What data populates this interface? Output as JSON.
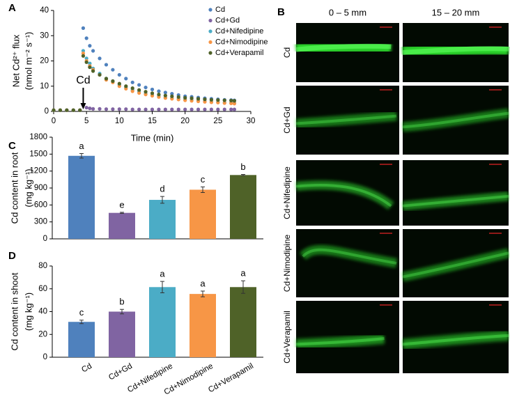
{
  "chart_data": [
    {
      "type": "line",
      "panel": "A",
      "ylabel": [
        "Net Cd²⁺ flux",
        "(nmol m⁻² s⁻¹)"
      ],
      "xlabel": "Time (min)",
      "x": [
        0,
        1,
        2,
        3,
        4,
        4.5,
        5,
        5.5,
        6,
        7,
        8,
        9,
        10,
        11,
        12,
        13,
        14,
        15,
        16,
        17,
        18,
        19,
        20,
        21,
        22,
        23,
        24,
        25,
        26,
        27,
        27.5
      ],
      "series": [
        {
          "name": "Cd",
          "color": "#4f81bd",
          "values": [
            0.5,
            0.5,
            0.5,
            0.5,
            0.5,
            33,
            29,
            26,
            24,
            21,
            18.5,
            16.5,
            14.5,
            13,
            11.5,
            10.5,
            9.5,
            8.7,
            8,
            7.5,
            7,
            6.5,
            6,
            5.8,
            5.5,
            5.2,
            5,
            4.8,
            4.6,
            4.5,
            4.4
          ]
        },
        {
          "name": "Cd+Gd",
          "color": "#8064a2",
          "values": [
            0.5,
            0.5,
            0.5,
            0.5,
            0.5,
            2.5,
            1.5,
            1.2,
            1,
            1,
            0.9,
            0.9,
            0.9,
            0.9,
            0.8,
            0.8,
            0.8,
            0.8,
            0.8,
            0.8,
            0.8,
            0.8,
            0.8,
            0.8,
            0.8,
            0.8,
            0.8,
            0.8,
            0.8,
            0.8,
            0.8
          ]
        },
        {
          "name": "Cd+Nifedipine",
          "color": "#4bacc6",
          "values": [
            0.5,
            0.5,
            0.5,
            0.5,
            0.5,
            24,
            21,
            19,
            17,
            15,
            13,
            12,
            10.5,
            9.5,
            8.5,
            7.8,
            7,
            6.5,
            6,
            5.5,
            5.2,
            5,
            4.7,
            4.5,
            4.3,
            4,
            3.8,
            3.7,
            3.5,
            3.4,
            3.3
          ]
        },
        {
          "name": "Cd+Nimodipine",
          "color": "#f79646",
          "values": [
            0.5,
            0.5,
            0.5,
            0.5,
            0.5,
            23,
            20,
            18,
            16.5,
            14.5,
            12.5,
            11.5,
            10,
            9,
            8,
            7.3,
            6.7,
            6.2,
            5.7,
            5.3,
            5,
            4.7,
            4.4,
            4.2,
            4,
            3.8,
            3.6,
            3.5,
            3.3,
            3.2,
            3.1
          ]
        },
        {
          "name": "Cd+Verapamil",
          "color": "#4f6228",
          "values": [
            0.5,
            0.5,
            0.5,
            0.5,
            0.5,
            22,
            19.5,
            17.5,
            16,
            14.5,
            13,
            12,
            11,
            10,
            9.2,
            8.5,
            7.8,
            7.2,
            6.7,
            6.3,
            6,
            5.7,
            5.4,
            5.2,
            5,
            4.8,
            4.6,
            4.5,
            4.4,
            4.3,
            4.2
          ]
        }
      ],
      "xlim": [
        0,
        30
      ],
      "xticks": [
        0,
        5,
        10,
        15,
        20,
        25,
        30
      ],
      "ylim": [
        0,
        40
      ],
      "yticks": [
        0,
        10,
        20,
        30,
        40
      ],
      "legend": "upper right",
      "annotations": [
        {
          "text": "Cd",
          "x": 4.5
        }
      ]
    },
    {
      "type": "bar",
      "panel": "C",
      "ylabel": [
        "Cd content in root",
        "(mg kg⁻¹)"
      ],
      "values": [
        1470,
        460,
        690,
        870,
        1130
      ],
      "errors": [
        40,
        10,
        60,
        50,
        10
      ],
      "colors": [
        "#4f81bd",
        "#8064a2",
        "#4bacc6",
        "#f79646",
        "#4f6228"
      ],
      "annotations": [
        "a",
        "e",
        "d",
        "c",
        "b"
      ],
      "ylim": [
        0,
        1800
      ],
      "yticks": [
        0,
        300,
        600,
        900,
        1200,
        1500,
        1800
      ]
    },
    {
      "type": "bar",
      "panel": "D",
      "ylabel": [
        "Cd content in shoot",
        "(mg kg⁻¹)"
      ],
      "categories": [
        "Cd",
        "Cd+Gd",
        "Cd+Nifedipine",
        "Cd+Nimodipine",
        "Cd+Verapamil"
      ],
      "values": [
        31,
        40,
        61.5,
        55.5,
        61.5
      ],
      "errors": [
        1.5,
        2,
        5,
        2.5,
        5.5
      ],
      "colors": [
        "#4f81bd",
        "#8064a2",
        "#4bacc6",
        "#f79646",
        "#4f6228"
      ],
      "annotations": [
        "c",
        "b",
        "a",
        "a",
        "a"
      ],
      "ylim": [
        0,
        80
      ],
      "yticks": [
        0,
        20,
        40,
        60,
        80
      ]
    }
  ],
  "image_panel": {
    "panel": "B",
    "columns": [
      "0 – 5 mm",
      "15 – 20 mm"
    ],
    "rows": [
      "Cd",
      "Cd+Gd",
      "Cd+Nifedipine",
      "Cd+Nimodipine",
      "Cd+Verapamil"
    ]
  }
}
